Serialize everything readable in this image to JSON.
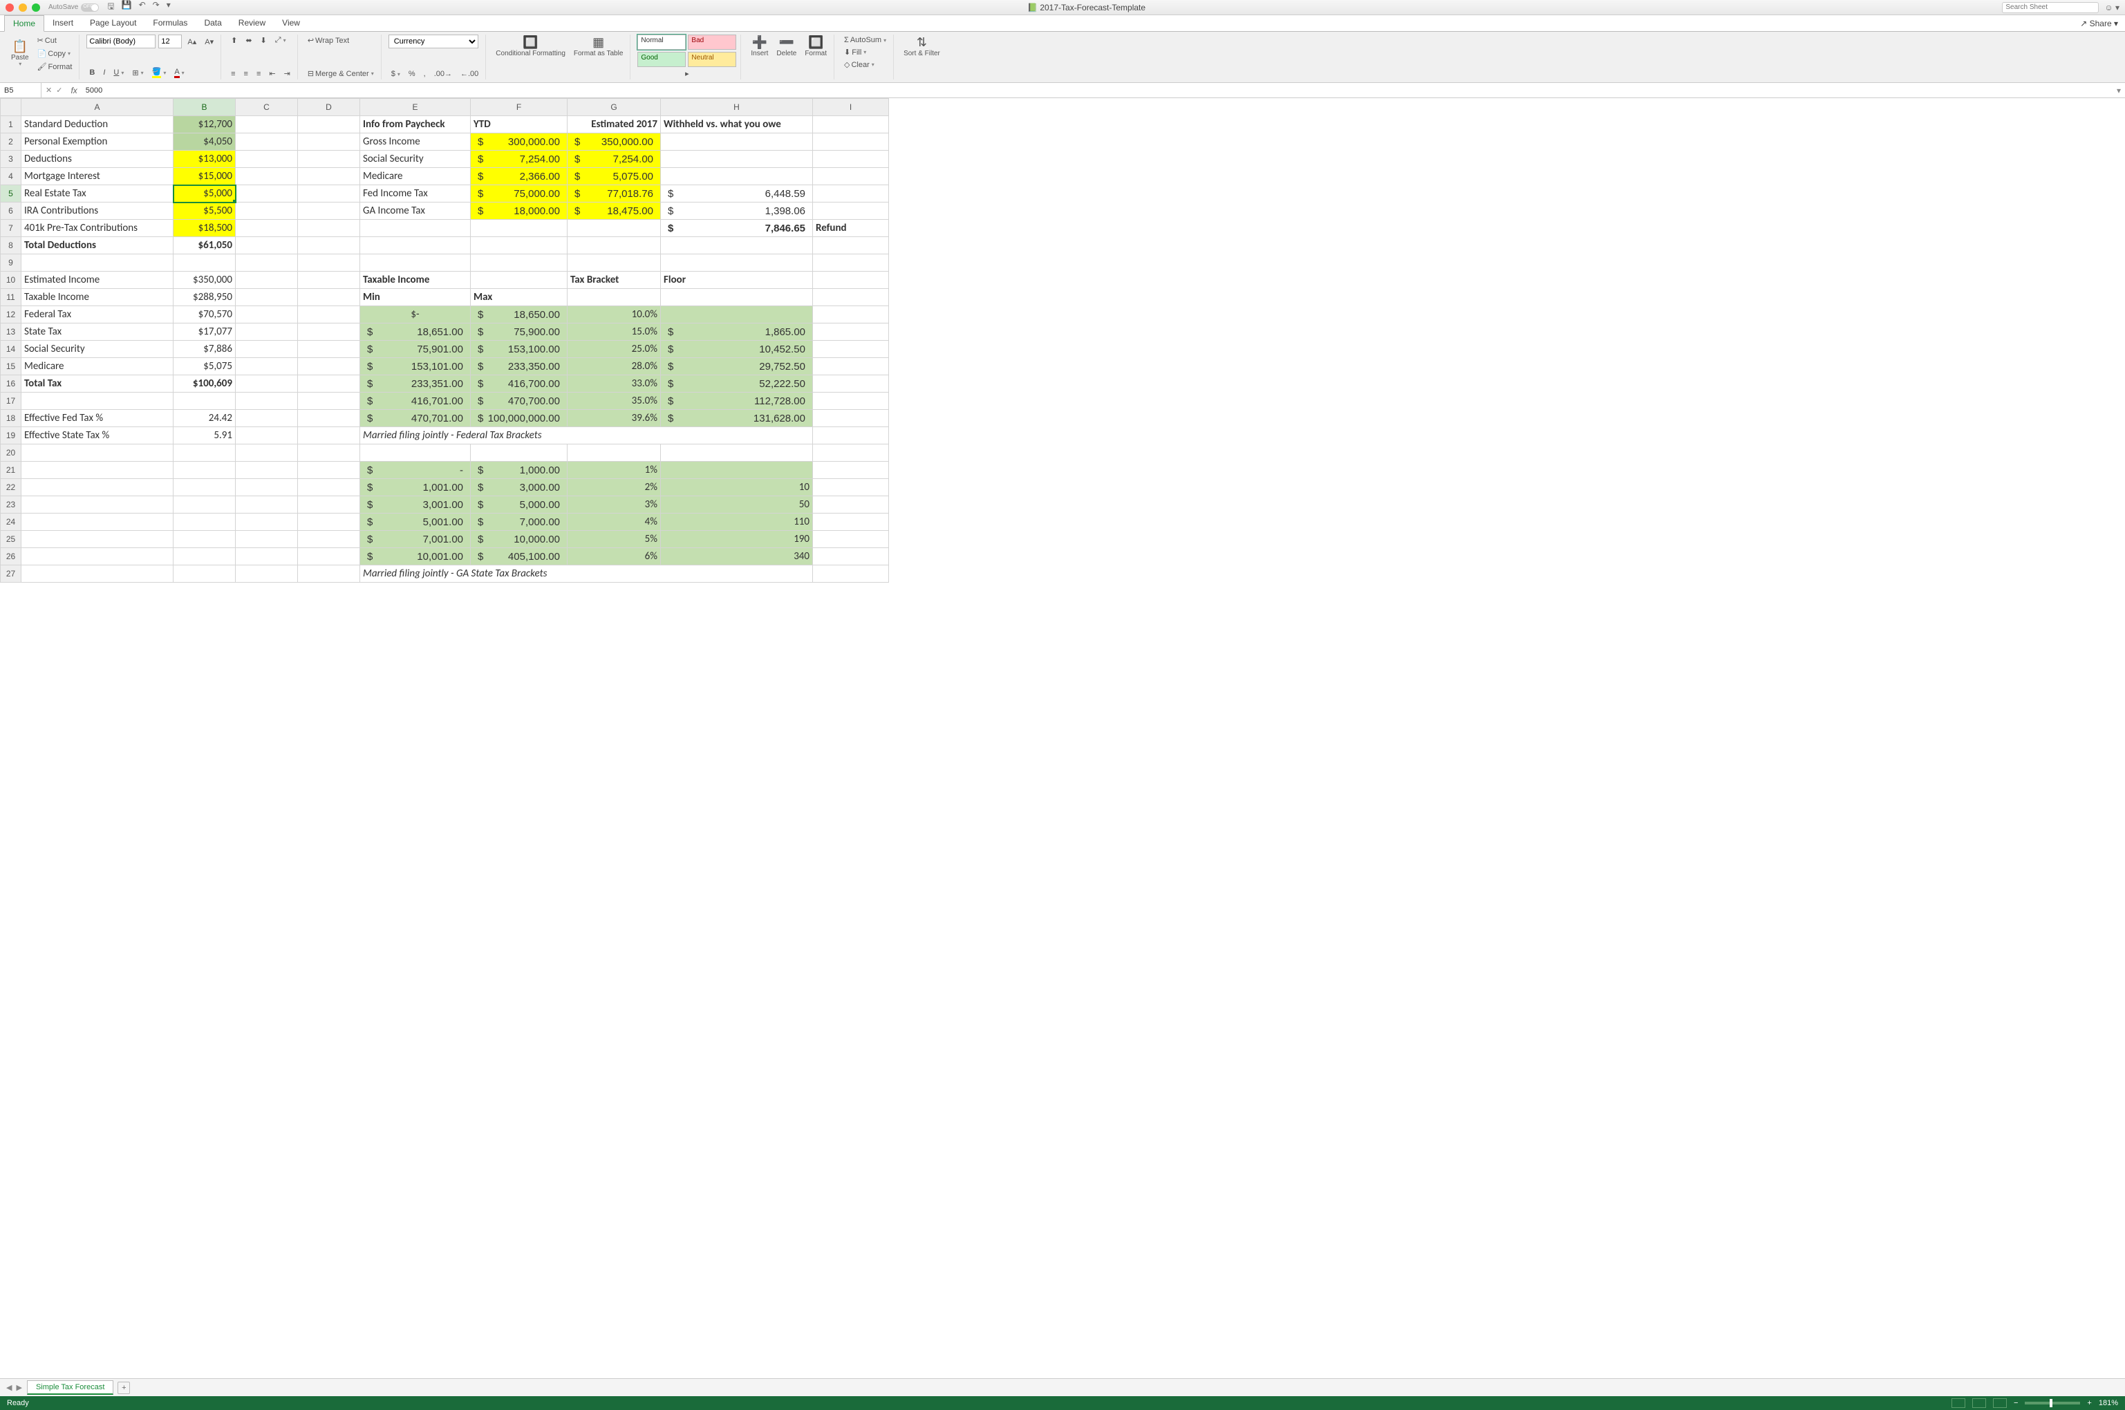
{
  "title": "2017-Tax-Forecast-Template",
  "autosave": "AutoSave",
  "search_placeholder": "Search Sheet",
  "tabs": [
    "Home",
    "Insert",
    "Page Layout",
    "Formulas",
    "Data",
    "Review",
    "View"
  ],
  "active_tab": "Home",
  "share": "Share",
  "ribbon": {
    "paste": "Paste",
    "cut": "Cut",
    "copy": "Copy",
    "format": "Format",
    "font_name": "Calibri (Body)",
    "font_size": "12",
    "wrap": "Wrap Text",
    "merge": "Merge & Center",
    "num_format": "Currency",
    "cf": "Conditional Formatting",
    "fat": "Format as Table",
    "styles": {
      "normal": "Normal",
      "bad": "Bad",
      "good": "Good",
      "neutral": "Neutral"
    },
    "insert": "Insert",
    "delete": "Delete",
    "formatc": "Format",
    "autosum": "AutoSum",
    "fill": "Fill",
    "clear": "Clear",
    "sort": "Sort & Filter"
  },
  "namebox": "B5",
  "formula": "5000",
  "cols": [
    "A",
    "B",
    "C",
    "D",
    "E",
    "F",
    "G",
    "H",
    "I"
  ],
  "colw": {
    "A": "cA",
    "B": "cB",
    "C": "cC",
    "D": "cD",
    "E": "cE",
    "F": "cF",
    "G": "cG",
    "H": "cH",
    "I": "cI"
  },
  "sel": {
    "row": 5,
    "col": "B"
  },
  "rows": [
    {
      "n": 1,
      "cells": {
        "A": {
          "v": "Standard Deduction",
          "cls": "txt"
        },
        "B": {
          "v": "$12,700",
          "cls": "bg-green"
        },
        "E": {
          "v": "Info from Paycheck",
          "cls": "txt bold"
        },
        "F": {
          "v": "YTD",
          "cls": "txt bold"
        },
        "G": {
          "v": "Estimated 2017",
          "cls": "bold"
        },
        "H": {
          "v": "Withheld vs. what you owe",
          "cls": "txt bold"
        }
      }
    },
    {
      "n": 2,
      "cells": {
        "A": {
          "v": "Personal Exemption",
          "cls": "txt"
        },
        "B": {
          "v": "$4,050",
          "cls": "bg-green"
        },
        "E": {
          "v": "Gross Income",
          "cls": "txt"
        },
        "F": {
          "v": "300,000.00",
          "acct": "$",
          "cls": "bg-yellow"
        },
        "G": {
          "v": "350,000.00",
          "acct": "$",
          "cls": "bg-yellow"
        }
      }
    },
    {
      "n": 3,
      "cells": {
        "A": {
          "v": "Deductions",
          "cls": "txt"
        },
        "B": {
          "v": "$13,000",
          "cls": "bg-yellow"
        },
        "E": {
          "v": "Social Security",
          "cls": "txt"
        },
        "F": {
          "v": "7,254.00",
          "acct": "$",
          "cls": "bg-yellow"
        },
        "G": {
          "v": "7,254.00",
          "acct": "$",
          "cls": "bg-yellow"
        }
      }
    },
    {
      "n": 4,
      "cells": {
        "A": {
          "v": "Mortgage Interest",
          "cls": "txt"
        },
        "B": {
          "v": "$15,000",
          "cls": "bg-yellow"
        },
        "E": {
          "v": "Medicare",
          "cls": "txt"
        },
        "F": {
          "v": "2,366.00",
          "acct": "$",
          "cls": "bg-yellow"
        },
        "G": {
          "v": "5,075.00",
          "acct": "$",
          "cls": "bg-yellow"
        }
      }
    },
    {
      "n": 5,
      "cells": {
        "A": {
          "v": "Real Estate Tax",
          "cls": "txt"
        },
        "B": {
          "v": "$5,000",
          "cls": "bg-yellow sel-cell"
        },
        "E": {
          "v": "Fed Income Tax",
          "cls": "txt"
        },
        "F": {
          "v": "75,000.00",
          "acct": "$",
          "cls": "bg-yellow"
        },
        "G": {
          "v": "77,018.76",
          "acct": "$",
          "cls": "bg-yellow"
        },
        "H": {
          "v": "6,448.59",
          "acct": "$"
        }
      }
    },
    {
      "n": 6,
      "cells": {
        "A": {
          "v": "IRA Contributions",
          "cls": "txt"
        },
        "B": {
          "v": "$5,500",
          "cls": "bg-yellow"
        },
        "E": {
          "v": "GA Income Tax",
          "cls": "txt"
        },
        "F": {
          "v": "18,000.00",
          "acct": "$",
          "cls": "bg-yellow"
        },
        "G": {
          "v": "18,475.00",
          "acct": "$",
          "cls": "bg-yellow"
        },
        "H": {
          "v": "1,398.06",
          "acct": "$"
        }
      }
    },
    {
      "n": 7,
      "cells": {
        "A": {
          "v": "401k Pre-Tax Contributions",
          "cls": "txt"
        },
        "B": {
          "v": "$18,500",
          "cls": "bg-yellow"
        },
        "H": {
          "v": "7,846.65",
          "acct": "$",
          "cls": "bold"
        },
        "I": {
          "v": "Refund",
          "cls": "txt bold"
        }
      }
    },
    {
      "n": 8,
      "cells": {
        "A": {
          "v": "Total Deductions",
          "cls": "txt bold"
        },
        "B": {
          "v": "$61,050",
          "cls": "bold"
        }
      }
    },
    {
      "n": 9,
      "cells": {}
    },
    {
      "n": 10,
      "cells": {
        "A": {
          "v": "Estimated Income",
          "cls": "txt"
        },
        "B": {
          "v": "$350,000"
        },
        "E": {
          "v": "Taxable Income",
          "cls": "txt bold"
        },
        "G": {
          "v": "Tax Bracket",
          "cls": "txt bold"
        },
        "H": {
          "v": "Floor",
          "cls": "txt bold"
        }
      }
    },
    {
      "n": 11,
      "cells": {
        "A": {
          "v": "Taxable Income",
          "cls": "txt"
        },
        "B": {
          "v": "$288,950"
        },
        "E": {
          "v": "Min",
          "cls": "txt bold"
        },
        "F": {
          "v": "Max",
          "cls": "txt bold"
        }
      }
    },
    {
      "n": 12,
      "cells": {
        "A": {
          "v": "Federal Tax",
          "cls": "txt"
        },
        "B": {
          "v": "$70,570"
        },
        "E": {
          "v": "$-",
          "cls": "bg-green-lt ctr"
        },
        "F": {
          "v": "18,650.00",
          "acct": "$",
          "cls": "bg-green-lt"
        },
        "G": {
          "v": "10.0%",
          "cls": "bg-green-lt"
        },
        "H": {
          "v": "",
          "cls": "bg-green-lt"
        }
      }
    },
    {
      "n": 13,
      "cells": {
        "A": {
          "v": "State Tax",
          "cls": "txt"
        },
        "B": {
          "v": "$17,077"
        },
        "E": {
          "v": "18,651.00",
          "acct": "$",
          "cls": "bg-green-lt"
        },
        "F": {
          "v": "75,900.00",
          "acct": "$",
          "cls": "bg-green-lt"
        },
        "G": {
          "v": "15.0%",
          "cls": "bg-green-lt"
        },
        "H": {
          "v": "1,865.00",
          "acct": "$",
          "cls": "bg-green-lt"
        }
      }
    },
    {
      "n": 14,
      "cells": {
        "A": {
          "v": "Social Security",
          "cls": "txt"
        },
        "B": {
          "v": "$7,886"
        },
        "E": {
          "v": "75,901.00",
          "acct": "$",
          "cls": "bg-green-lt"
        },
        "F": {
          "v": "153,100.00",
          "acct": "$",
          "cls": "bg-green-lt"
        },
        "G": {
          "v": "25.0%",
          "cls": "bg-green-lt"
        },
        "H": {
          "v": "10,452.50",
          "acct": "$",
          "cls": "bg-green-lt"
        }
      }
    },
    {
      "n": 15,
      "cells": {
        "A": {
          "v": "Medicare",
          "cls": "txt"
        },
        "B": {
          "v": "$5,075"
        },
        "E": {
          "v": "153,101.00",
          "acct": "$",
          "cls": "bg-green-lt"
        },
        "F": {
          "v": "233,350.00",
          "acct": "$",
          "cls": "bg-green-lt"
        },
        "G": {
          "v": "28.0%",
          "cls": "bg-green-lt"
        },
        "H": {
          "v": "29,752.50",
          "acct": "$",
          "cls": "bg-green-lt"
        }
      }
    },
    {
      "n": 16,
      "cells": {
        "A": {
          "v": "Total Tax",
          "cls": "txt bold"
        },
        "B": {
          "v": "$100,609",
          "cls": "bold"
        },
        "E": {
          "v": "233,351.00",
          "acct": "$",
          "cls": "bg-green-lt"
        },
        "F": {
          "v": "416,700.00",
          "acct": "$",
          "cls": "bg-green-lt"
        },
        "G": {
          "v": "33.0%",
          "cls": "bg-green-lt"
        },
        "H": {
          "v": "52,222.50",
          "acct": "$",
          "cls": "bg-green-lt"
        }
      }
    },
    {
      "n": 17,
      "cells": {
        "E": {
          "v": "416,701.00",
          "acct": "$",
          "cls": "bg-green-lt"
        },
        "F": {
          "v": "470,700.00",
          "acct": "$",
          "cls": "bg-green-lt"
        },
        "G": {
          "v": "35.0%",
          "cls": "bg-green-lt"
        },
        "H": {
          "v": "112,728.00",
          "acct": "$",
          "cls": "bg-green-lt"
        }
      }
    },
    {
      "n": 18,
      "cells": {
        "A": {
          "v": "Effective Fed Tax %",
          "cls": "txt"
        },
        "B": {
          "v": "24.42"
        },
        "E": {
          "v": "470,701.00",
          "acct": "$",
          "cls": "bg-green-lt"
        },
        "F": {
          "v": "100,000,000.00",
          "acct": "$",
          "cls": "bg-green-lt"
        },
        "G": {
          "v": "39.6%",
          "cls": "bg-green-lt"
        },
        "H": {
          "v": "131,628.00",
          "acct": "$",
          "cls": "bg-green-lt"
        }
      }
    },
    {
      "n": 19,
      "cells": {
        "A": {
          "v": "Effective State Tax %",
          "cls": "txt"
        },
        "B": {
          "v": "5.91"
        },
        "E": {
          "v": "Married filing jointly - Federal Tax Brackets",
          "cls": "txt italic",
          "span": 4
        }
      }
    },
    {
      "n": 20,
      "cells": {}
    },
    {
      "n": 21,
      "cells": {
        "E": {
          "v": "-",
          "acct": "$",
          "cls": "bg-green-lt"
        },
        "F": {
          "v": "1,000.00",
          "acct": "$",
          "cls": "bg-green-lt"
        },
        "G": {
          "v": "1%",
          "cls": "bg-green-lt"
        },
        "H": {
          "v": "",
          "cls": "bg-green-lt"
        }
      }
    },
    {
      "n": 22,
      "cells": {
        "E": {
          "v": "1,001.00",
          "acct": "$",
          "cls": "bg-green-lt"
        },
        "F": {
          "v": "3,000.00",
          "acct": "$",
          "cls": "bg-green-lt"
        },
        "G": {
          "v": "2%",
          "cls": "bg-green-lt"
        },
        "H": {
          "v": "10",
          "cls": "bg-green-lt"
        }
      }
    },
    {
      "n": 23,
      "cells": {
        "E": {
          "v": "3,001.00",
          "acct": "$",
          "cls": "bg-green-lt"
        },
        "F": {
          "v": "5,000.00",
          "acct": "$",
          "cls": "bg-green-lt"
        },
        "G": {
          "v": "3%",
          "cls": "bg-green-lt"
        },
        "H": {
          "v": "50",
          "cls": "bg-green-lt"
        }
      }
    },
    {
      "n": 24,
      "cells": {
        "E": {
          "v": "5,001.00",
          "acct": "$",
          "cls": "bg-green-lt"
        },
        "F": {
          "v": "7,000.00",
          "acct": "$",
          "cls": "bg-green-lt"
        },
        "G": {
          "v": "4%",
          "cls": "bg-green-lt"
        },
        "H": {
          "v": "110",
          "cls": "bg-green-lt"
        }
      }
    },
    {
      "n": 25,
      "cells": {
        "E": {
          "v": "7,001.00",
          "acct": "$",
          "cls": "bg-green-lt"
        },
        "F": {
          "v": "10,000.00",
          "acct": "$",
          "cls": "bg-green-lt"
        },
        "G": {
          "v": "5%",
          "cls": "bg-green-lt"
        },
        "H": {
          "v": "190",
          "cls": "bg-green-lt"
        }
      }
    },
    {
      "n": 26,
      "cells": {
        "E": {
          "v": "10,001.00",
          "acct": "$",
          "cls": "bg-green-lt"
        },
        "F": {
          "v": "405,100.00",
          "acct": "$",
          "cls": "bg-green-lt"
        },
        "G": {
          "v": "6%",
          "cls": "bg-green-lt"
        },
        "H": {
          "v": "340",
          "cls": "bg-green-lt"
        }
      }
    },
    {
      "n": 27,
      "cells": {
        "E": {
          "v": "Married filing jointly - GA State Tax Brackets",
          "cls": "txt italic",
          "span": 4
        }
      }
    }
  ],
  "sheet_tab": "Simple Tax Forecast",
  "status": "Ready",
  "zoom": "181%"
}
